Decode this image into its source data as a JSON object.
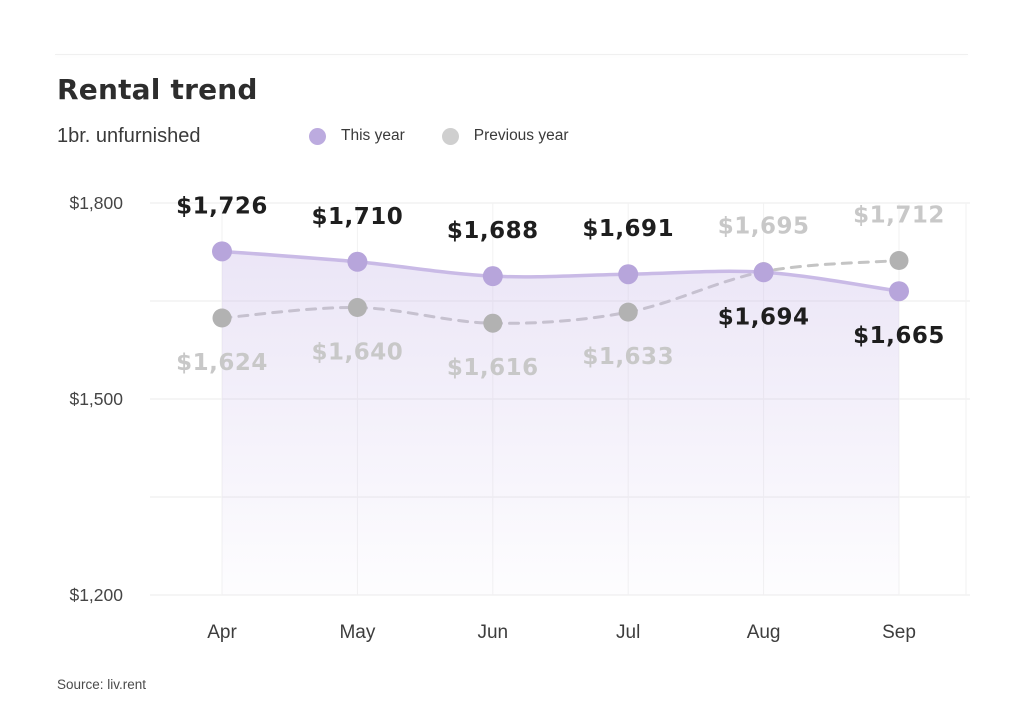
{
  "header": {
    "title": "Rental trend",
    "subtitle": "1br. unfurnished"
  },
  "legend": [
    {
      "label": "This year",
      "color": "#bcabdf"
    },
    {
      "label": "Previous year",
      "color": "#cfcfcf"
    }
  ],
  "source": "Source: liv.rent",
  "colors": {
    "this_year_line": "#c9bae6",
    "this_year_dot": "#b7a5db",
    "this_year_label": "#1e1e1e",
    "previous_year_line": "#c4c4c4",
    "previous_year_dot": "#b2b2b2",
    "previous_year_label": "#c8c8c8",
    "area_fill_base": "201,186,232",
    "gridline_h": "#ebebeb",
    "gridline_v": "#f2f2f2",
    "axis_text": "#454545"
  },
  "chart_data": {
    "type": "line",
    "title": "Rental trend",
    "subtitle": "1br. unfurnished",
    "categories": [
      "Apr",
      "May",
      "Jun",
      "Jul",
      "Aug",
      "Sep"
    ],
    "series": [
      {
        "name": "This year",
        "values": [
          1726,
          1710,
          1688,
          1691,
          1694,
          1665
        ],
        "labels": [
          "$1,726",
          "$1,710",
          "$1,688",
          "$1,691",
          "$1,694",
          "$1,665"
        ],
        "label_side": [
          "above",
          "above",
          "above",
          "above",
          "below",
          "below"
        ],
        "style": "solid",
        "area_fill": true
      },
      {
        "name": "Previous year",
        "values": [
          1624,
          1640,
          1616,
          1633,
          1695,
          1712
        ],
        "labels": [
          "$1,624",
          "$1,640",
          "$1,616",
          "$1,633",
          "$1,695",
          "$1,712"
        ],
        "label_side": [
          "below",
          "below",
          "below",
          "below",
          "above",
          "above"
        ],
        "style": "dashed",
        "area_fill": false
      }
    ],
    "xlabel": "",
    "ylabel": "",
    "ylim": [
      1200,
      1800
    ],
    "yticks": [
      {
        "value": 1800,
        "label": "$1,800"
      },
      {
        "value": 1500,
        "label": "$1,500"
      },
      {
        "value": 1200,
        "label": "$1,200"
      }
    ],
    "gridline_values": [
      1800,
      1650,
      1500,
      1350,
      1200
    ],
    "grid": true,
    "legend_position": "top"
  }
}
